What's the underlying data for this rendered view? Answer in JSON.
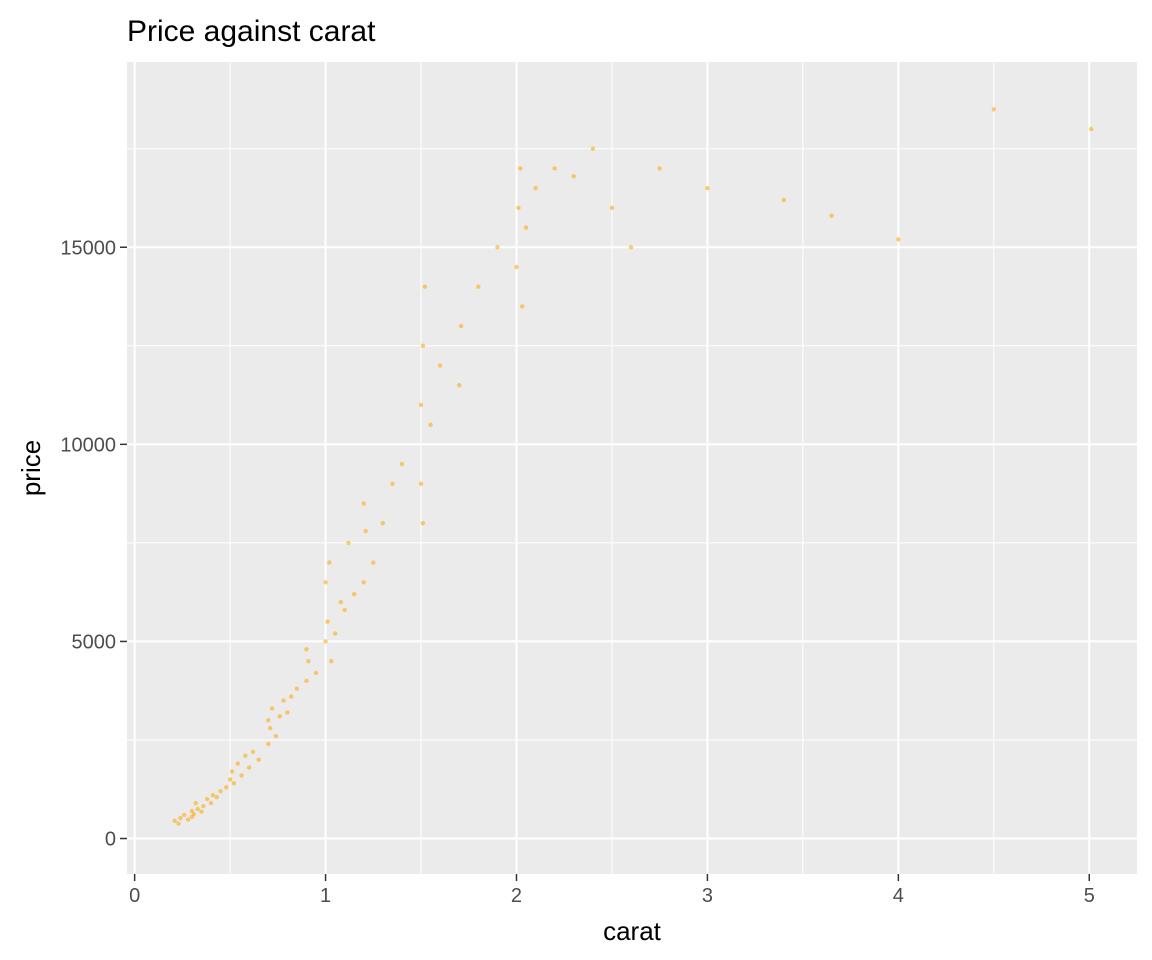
{
  "chart_data": {
    "type": "scatter",
    "title": "Price against carat",
    "xlabel": "carat",
    "ylabel": "price",
    "xlim": [
      -0.04,
      5.25
    ],
    "ylim": [
      -900,
      19700
    ],
    "x_ticks": [
      0,
      1,
      2,
      3,
      4,
      5
    ],
    "y_ticks": [
      0,
      5000,
      10000,
      15000
    ],
    "x_tick_labels": [
      "0",
      "1",
      "2",
      "3",
      "4",
      "5"
    ],
    "y_tick_labels": [
      "0",
      "5000",
      "10000",
      "15000"
    ],
    "x_minor_ticks": [
      0.5,
      1.5,
      2.5,
      3.5,
      4.5
    ],
    "y_minor_ticks": [
      2500,
      7500,
      12500,
      17500
    ],
    "grid": true,
    "legend": "none",
    "point_color": "#FFA500",
    "panel_background": "#EBEBEB",
    "grid_color": "#FFFFFF",
    "series": [
      {
        "values": [
          [
            0.21,
            450
          ],
          [
            0.23,
            380
          ],
          [
            0.24,
            520
          ],
          [
            0.26,
            600
          ],
          [
            0.28,
            480
          ],
          [
            0.3,
            550
          ],
          [
            0.3,
            700
          ],
          [
            0.31,
            620
          ],
          [
            0.32,
            900
          ],
          [
            0.33,
            750
          ],
          [
            0.35,
            680
          ],
          [
            0.36,
            820
          ],
          [
            0.38,
            1000
          ],
          [
            0.4,
            900
          ],
          [
            0.41,
            1100
          ],
          [
            0.43,
            1050
          ],
          [
            0.45,
            1200
          ],
          [
            0.48,
            1300
          ],
          [
            0.5,
            1500
          ],
          [
            0.51,
            1700
          ],
          [
            0.52,
            1400
          ],
          [
            0.54,
            1900
          ],
          [
            0.56,
            1600
          ],
          [
            0.58,
            2100
          ],
          [
            0.6,
            1800
          ],
          [
            0.62,
            2200
          ],
          [
            0.65,
            2000
          ],
          [
            0.7,
            2400
          ],
          [
            0.7,
            3000
          ],
          [
            0.71,
            2800
          ],
          [
            0.72,
            3300
          ],
          [
            0.74,
            2600
          ],
          [
            0.76,
            3100
          ],
          [
            0.78,
            3500
          ],
          [
            0.8,
            3200
          ],
          [
            0.82,
            3600
          ],
          [
            0.85,
            3800
          ],
          [
            0.9,
            4000
          ],
          [
            0.9,
            4800
          ],
          [
            0.91,
            4500
          ],
          [
            0.95,
            4200
          ],
          [
            1.0,
            5000
          ],
          [
            1.0,
            6500
          ],
          [
            1.01,
            5500
          ],
          [
            1.02,
            7000
          ],
          [
            1.03,
            4500
          ],
          [
            1.05,
            5200
          ],
          [
            1.08,
            6000
          ],
          [
            1.1,
            5800
          ],
          [
            1.12,
            7500
          ],
          [
            1.15,
            6200
          ],
          [
            1.2,
            6500
          ],
          [
            1.2,
            8500
          ],
          [
            1.21,
            7800
          ],
          [
            1.25,
            7000
          ],
          [
            1.3,
            8000
          ],
          [
            1.35,
            9000
          ],
          [
            1.4,
            9500
          ],
          [
            1.5,
            9000
          ],
          [
            1.5,
            11000
          ],
          [
            1.51,
            12500
          ],
          [
            1.51,
            8000
          ],
          [
            1.52,
            14000
          ],
          [
            1.55,
            10500
          ],
          [
            1.6,
            12000
          ],
          [
            1.7,
            11500
          ],
          [
            1.71,
            13000
          ],
          [
            1.8,
            14000
          ],
          [
            1.9,
            15000
          ],
          [
            2.0,
            14500
          ],
          [
            2.01,
            16000
          ],
          [
            2.02,
            17000
          ],
          [
            2.03,
            13500
          ],
          [
            2.05,
            15500
          ],
          [
            2.1,
            16500
          ],
          [
            2.2,
            17000
          ],
          [
            2.3,
            16800
          ],
          [
            2.4,
            17500
          ],
          [
            2.5,
            16000
          ],
          [
            2.6,
            15000
          ],
          [
            2.75,
            17000
          ],
          [
            3.0,
            16500
          ],
          [
            3.4,
            16200
          ],
          [
            3.65,
            15800
          ],
          [
            4.0,
            15200
          ],
          [
            4.5,
            18500
          ],
          [
            5.01,
            18000
          ]
        ]
      }
    ]
  }
}
